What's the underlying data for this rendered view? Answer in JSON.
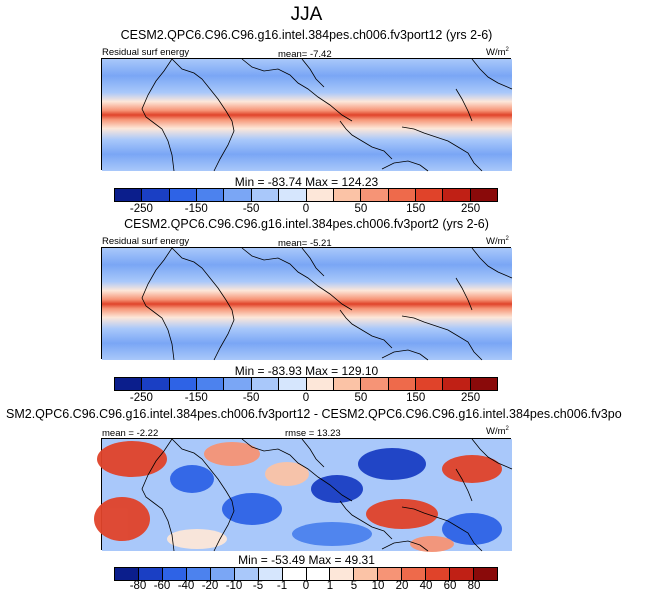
{
  "title": "JJA",
  "units": "W/m2",
  "panels": [
    {
      "title": "CESM2.QPC6.C96.C96.g16.intel.384pes.ch006.fv3port12 (yrs 2-6)",
      "left_label": "Residual surf energy",
      "center_label": "mean=  -7.42",
      "minmax": "Min = -83.74 Max = 124.23",
      "colorbar": [
        "-250",
        "-150",
        "-50",
        "0",
        "50",
        "150",
        "250"
      ]
    },
    {
      "title": "CESM2.QPC6.C96.C96.g16.intel.384pes.ch006.fv3port2 (yrs 2-6)",
      "left_label": "Residual surf energy",
      "center_label": "mean=  -5.21",
      "minmax": "Min = -83.93 Max = 129.10",
      "colorbar": [
        "-250",
        "-150",
        "-50",
        "0",
        "50",
        "150",
        "250"
      ]
    },
    {
      "title": "SM2.QPC6.C96.C96.g16.intel.384pes.ch006.fv3port12 - CESM2.QPC6.C96.C96.g16.intel.384pes.ch006.fv3po",
      "left_label": "mean =  -2.22",
      "center_label": "rmse =  13.23",
      "minmax": "Min = -53.49 Max =  49.31",
      "colorbar": [
        "-80",
        "-60",
        "-40",
        "-20",
        "-10",
        "-5",
        "-1",
        "0",
        "1",
        "5",
        "10",
        "20",
        "40",
        "60",
        "80"
      ]
    }
  ],
  "colors": {
    "abs_scale": [
      "#0b1e8c",
      "#1a3fc4",
      "#2e63e6",
      "#4c82ee",
      "#7aa6f5",
      "#a9c8fa",
      "#d6e6fd",
      "#fde7d9",
      "#fbc3a6",
      "#f69476",
      "#ee6a4b",
      "#e0432a",
      "#c02015",
      "#8a0a0a"
    ],
    "diff_scale": [
      "#0b1e8c",
      "#1a3fc4",
      "#2e63e6",
      "#4c82ee",
      "#7aa6f5",
      "#a9c8fa",
      "#d6e6fd",
      "#ffffff",
      "#ffffff",
      "#fde7d9",
      "#fbc3a6",
      "#f69476",
      "#ee6a4b",
      "#e0432a",
      "#c02015",
      "#8a0a0a"
    ]
  }
}
